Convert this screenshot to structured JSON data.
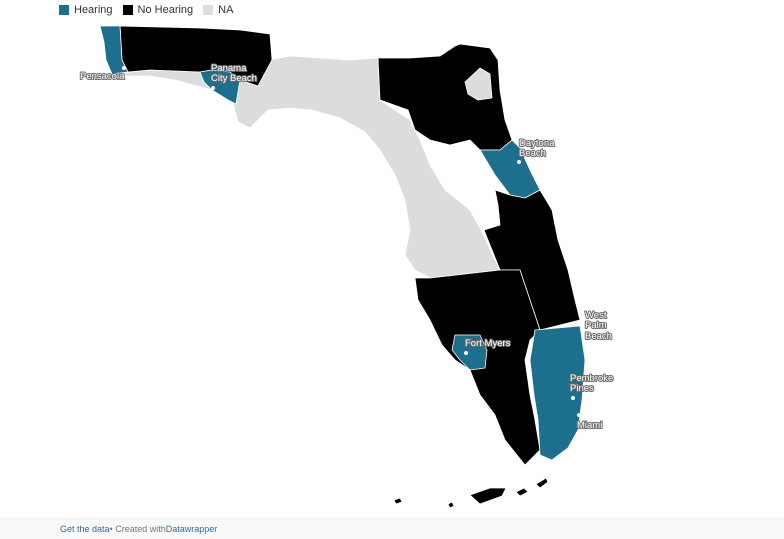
{
  "legend": {
    "items": [
      {
        "label": "Hearing",
        "color": "#1d6f8e"
      },
      {
        "label": "No Hearing",
        "color": "#000000"
      },
      {
        "label": "NA",
        "color": "#dcdcdc"
      }
    ]
  },
  "colors": {
    "hearing": "#1d6f8e",
    "no_hearing": "#000000",
    "na": "#dcdcdc",
    "border": "#ffffff"
  },
  "cities": {
    "pensacola": "Pensacola",
    "panama_city_beach_1": "Panama",
    "panama_city_beach_2": "City Beach",
    "daytona_beach_1": "Daytona",
    "daytona_beach_2": "Beach",
    "west_palm_beach_1": "West",
    "west_palm_beach_2": "Palm",
    "west_palm_beach_3": "Beach",
    "fort_myers": "Fort Myers",
    "pembroke_pines_1": "Pembroke",
    "pembroke_pines_2": "Pines",
    "miami": "Miami"
  },
  "footer": {
    "get_data": "Get the data",
    "separator": " • Created with ",
    "datawrapper": "Datawrapper"
  }
}
